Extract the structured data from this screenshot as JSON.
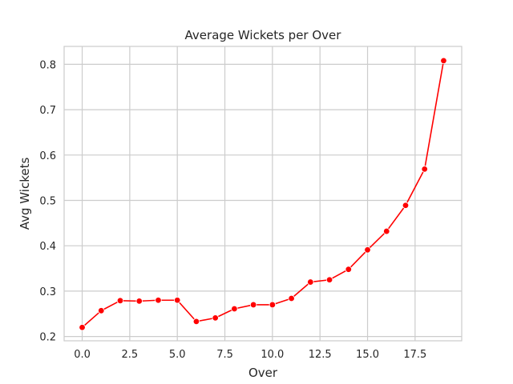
{
  "chart_data": {
    "type": "line",
    "title": "Average Wickets per Over",
    "xlabel": "Over",
    "ylabel": "Avg Wickets",
    "xlim": [
      -0.95,
      19.95
    ],
    "ylim": [
      0.1905,
      0.8395
    ],
    "xticks": [
      0.0,
      2.5,
      5.0,
      7.5,
      10.0,
      12.5,
      15.0,
      17.5
    ],
    "xtick_labels": [
      "0.0",
      "2.5",
      "5.0",
      "7.5",
      "10.0",
      "12.5",
      "15.0",
      "17.5"
    ],
    "yticks": [
      0.2,
      0.3,
      0.4,
      0.5,
      0.6,
      0.7,
      0.8
    ],
    "ytick_labels": [
      "0.2",
      "0.3",
      "0.4",
      "0.5",
      "0.6",
      "0.7",
      "0.8"
    ],
    "grid": true,
    "legend": "none",
    "series": [
      {
        "color": "#ff0000",
        "marker": "circle",
        "x": [
          0,
          1,
          2,
          3,
          4,
          5,
          6,
          7,
          8,
          9,
          10,
          11,
          12,
          13,
          14,
          15,
          16,
          17,
          18,
          19
        ],
        "y": [
          0.22,
          0.257,
          0.279,
          0.278,
          0.28,
          0.28,
          0.233,
          0.241,
          0.261,
          0.27,
          0.27,
          0.284,
          0.32,
          0.325,
          0.348,
          0.391,
          0.432,
          0.489,
          0.569,
          0.808
        ]
      }
    ]
  }
}
